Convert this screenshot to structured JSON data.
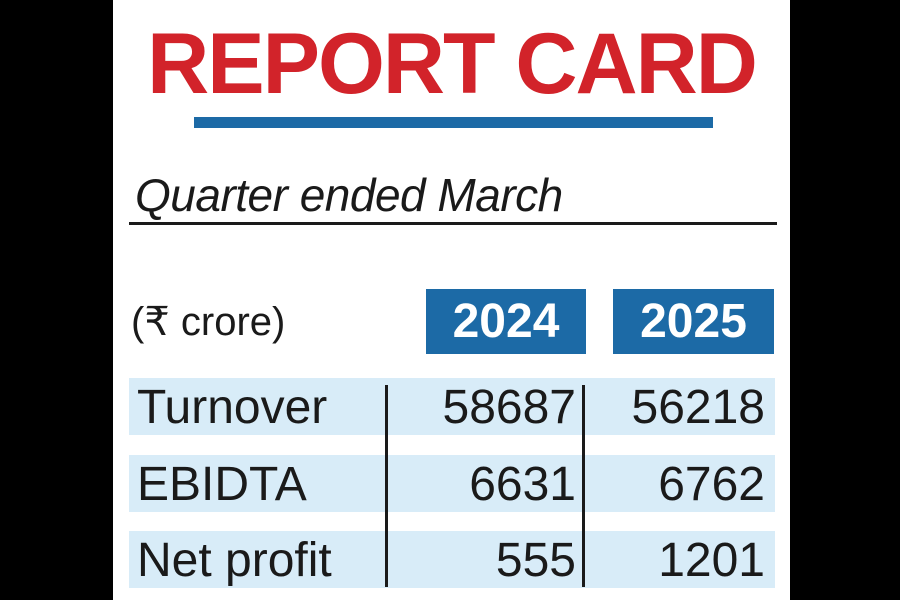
{
  "title": "REPORT CARD",
  "subtitle": "Quarter ended March",
  "colors": {
    "title": "#d2232a",
    "accent": "#1c6aa6",
    "row_fill": "#d8ecf8"
  },
  "chart_data": {
    "type": "table",
    "unit_label": "(₹ crore)",
    "columns": [
      "2024",
      "2025"
    ],
    "rows": [
      {
        "label": "Turnover",
        "values": [
          "58687",
          "56218"
        ]
      },
      {
        "label": "EBIDTA",
        "values": [
          "6631",
          "6762"
        ]
      },
      {
        "label": "Net profit",
        "values": [
          "555",
          "1201"
        ]
      }
    ]
  }
}
